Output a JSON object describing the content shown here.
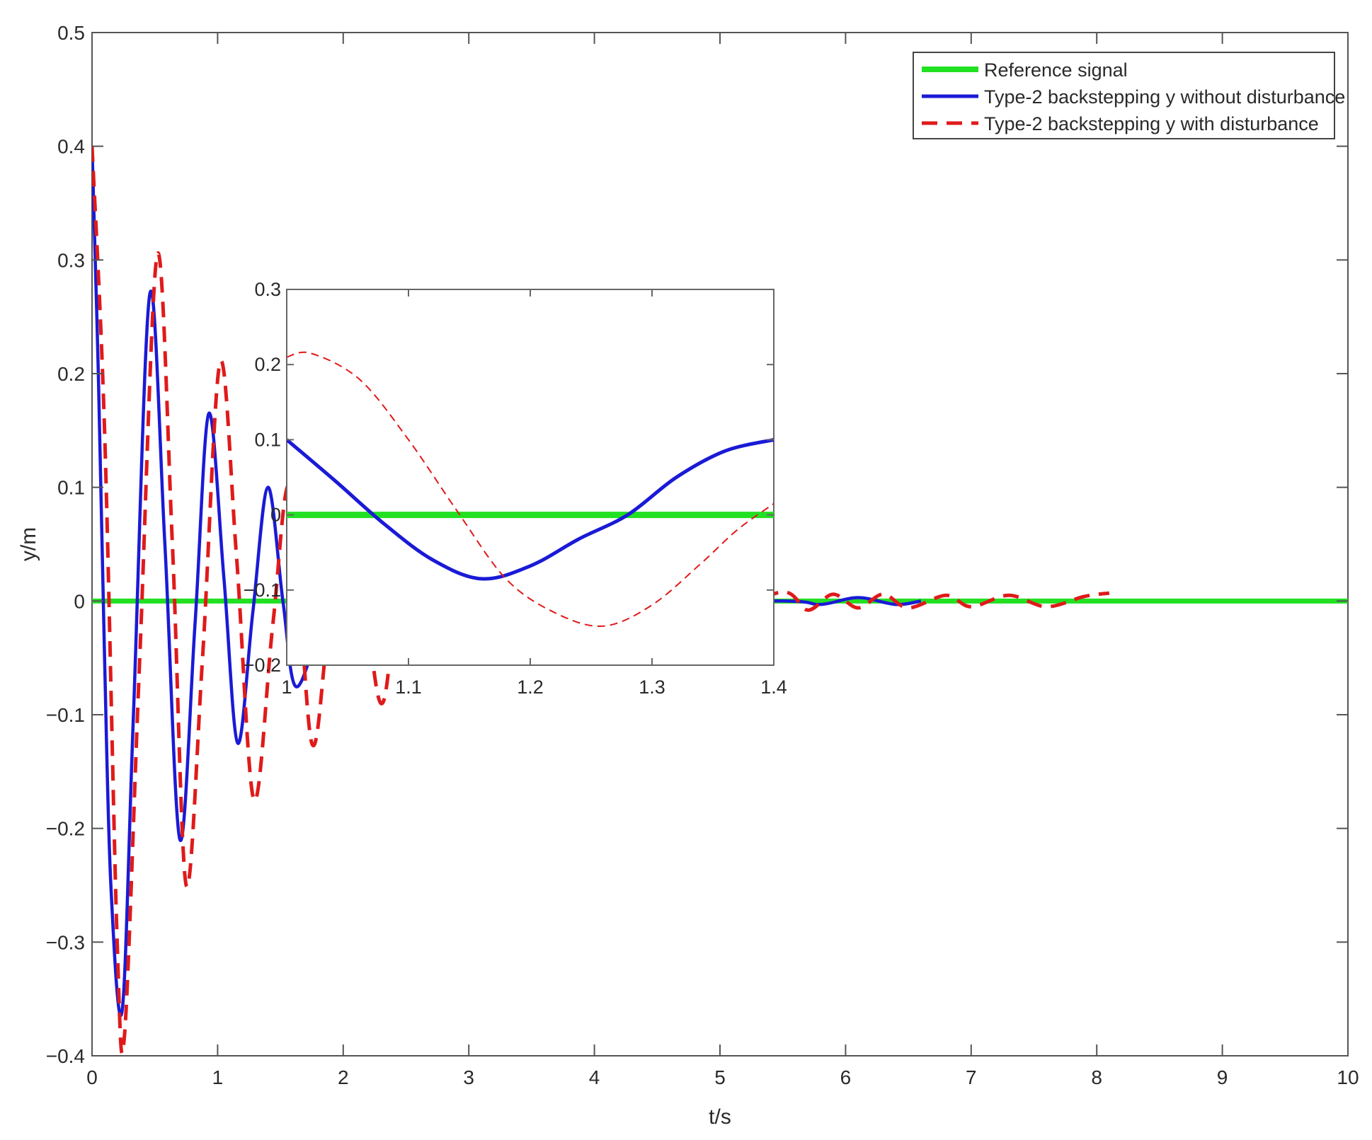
{
  "chart_data": {
    "type": "line",
    "title": "",
    "xlabel": "t/s",
    "ylabel": "y/m",
    "xlim": [
      0,
      10
    ],
    "ylim": [
      -0.4,
      0.5
    ],
    "xticks": [
      "0",
      "1",
      "2",
      "3",
      "4",
      "5",
      "6",
      "7",
      "8",
      "9",
      "10"
    ],
    "yticks": [
      "0.5",
      "0.4",
      "0.3",
      "0.2",
      "0.1",
      "0",
      "−0.1",
      "−0.2",
      "−0.3",
      "−0.4"
    ],
    "grid": false,
    "legend_position": "top-right",
    "series": [
      {
        "name": "Reference signal",
        "color": "#22e022",
        "style": "solid-thick",
        "x": [
          0,
          10
        ],
        "y": [
          0,
          0
        ]
      },
      {
        "name": "Type-2 backstepping y without disturbance",
        "color": "#1a1ad6",
        "style": "solid",
        "x": [
          0,
          0.05,
          0.1,
          0.15,
          0.24,
          0.33,
          0.46,
          0.58,
          0.7,
          0.82,
          0.93,
          1.05,
          1.16,
          1.28,
          1.4,
          1.52,
          1.62,
          1.8,
          2.0,
          2.4,
          3.0,
          4.0,
          5.5,
          5.8,
          6.1,
          6.4,
          6.6
        ],
        "y": [
          0.4,
          0.2,
          -0.05,
          -0.25,
          -0.36,
          -0.1,
          0.27,
          0.05,
          -0.21,
          -0.02,
          0.165,
          0.02,
          -0.125,
          -0.01,
          0.1,
          0.0,
          -0.075,
          -0.03,
          0.02,
          -0.01,
          0.005,
          0.0,
          0.0,
          -0.003,
          0.003,
          -0.003,
          0.0
        ]
      },
      {
        "name": "Type-2 backstepping y with disturbance",
        "color": "#e01a1a",
        "style": "dashed",
        "x": [
          0,
          0.1,
          0.2,
          0.26,
          0.38,
          0.52,
          0.64,
          0.75,
          0.88,
          1.02,
          1.15,
          1.29,
          1.44,
          1.58,
          1.75,
          1.9,
          2.1,
          2.3,
          2.5,
          3.0,
          3.5,
          4.0,
          4.5,
          5.0,
          5.5,
          5.7,
          5.9,
          6.1,
          6.3,
          6.5,
          6.8,
          7.0,
          7.3,
          7.6,
          7.9,
          8.1
        ],
        "y": [
          0.4,
          0.15,
          -0.3,
          -0.38,
          -0.05,
          0.305,
          0.05,
          -0.25,
          -0.05,
          0.21,
          0.04,
          -0.175,
          -0.02,
          0.1,
          -0.125,
          -0.01,
          0.06,
          -0.09,
          0.02,
          -0.04,
          0.03,
          -0.02,
          0.015,
          -0.01,
          0.008,
          -0.008,
          0.006,
          -0.006,
          0.006,
          -0.006,
          0.005,
          -0.005,
          0.005,
          -0.005,
          0.004,
          0.007
        ]
      }
    ],
    "inset": {
      "xlim": [
        1.0,
        1.4
      ],
      "ylim": [
        -0.2,
        0.3
      ],
      "xticks": [
        "1",
        "1.1",
        "1.2",
        "1.3",
        "1.4"
      ],
      "yticks": [
        "0.3",
        "0.2",
        "0.1",
        "0",
        "−0.1",
        "−0.2"
      ],
      "series": [
        {
          "name": "Reference signal",
          "color": "#22e022",
          "x": [
            1.0,
            1.4
          ],
          "y": [
            0,
            0
          ]
        },
        {
          "name": "Type-2 backstepping y without disturbance",
          "color": "#1a1ad6",
          "x": [
            1.0,
            1.04,
            1.08,
            1.12,
            1.16,
            1.2,
            1.24,
            1.28,
            1.32,
            1.36,
            1.4
          ],
          "y": [
            0.1,
            0.045,
            -0.012,
            -0.06,
            -0.085,
            -0.068,
            -0.032,
            0.0,
            0.05,
            0.085,
            0.1
          ]
        },
        {
          "name": "Type-2 backstepping y with disturbance",
          "color": "#e01a1a",
          "x": [
            1.0,
            1.02,
            1.06,
            1.1,
            1.14,
            1.18,
            1.22,
            1.26,
            1.3,
            1.34,
            1.37,
            1.4
          ],
          "y": [
            0.21,
            0.215,
            0.18,
            0.1,
            0.005,
            -0.085,
            -0.13,
            -0.148,
            -0.12,
            -0.065,
            -0.02,
            0.015
          ]
        }
      ]
    }
  }
}
